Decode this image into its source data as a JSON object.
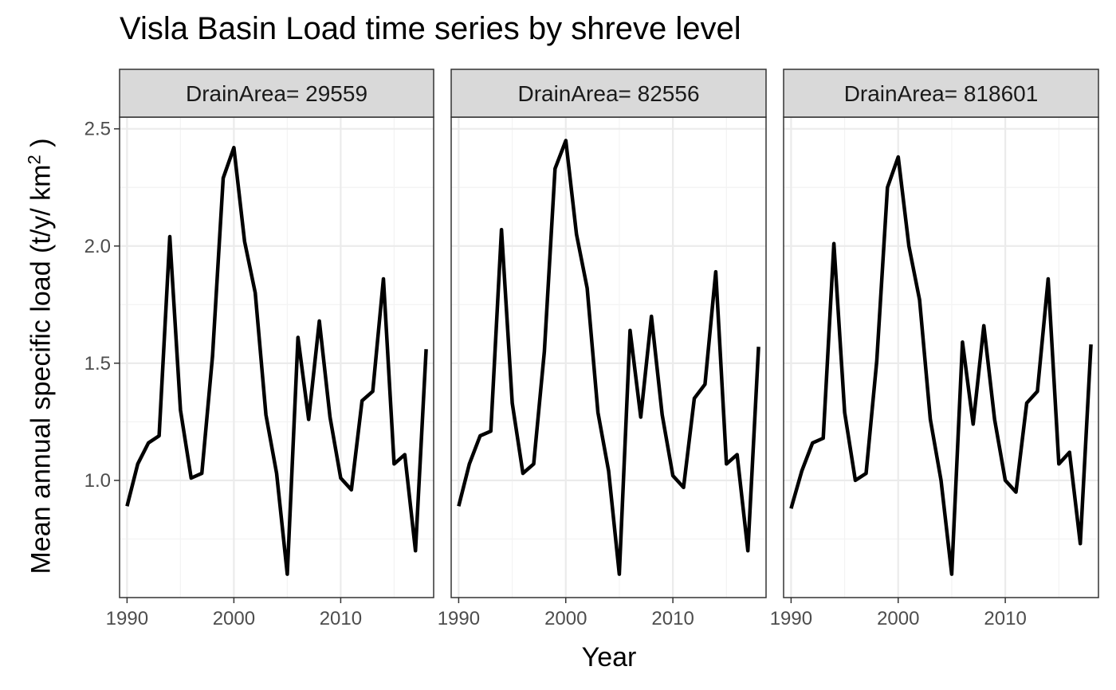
{
  "chart_data": {
    "type": "line",
    "title": "Visla Basin Load time series by shreve level",
    "xlabel": "Year",
    "ylabel": "Mean annual specific load (t/y/ km",
    "ylabel_sup": "2",
    "ylabel_close": ")",
    "xlim": [
      1989.3,
      2018.7
    ],
    "ylim": [
      0.5,
      2.55
    ],
    "x_ticks": [
      1990,
      2000,
      2010
    ],
    "y_ticks": [
      1.0,
      1.5,
      2.0,
      2.5
    ],
    "y_tick_labels": [
      "1.0",
      "1.5",
      "2.0",
      "2.5"
    ],
    "grid": true,
    "x": [
      1990,
      1991,
      1992,
      1993,
      1994,
      1995,
      1996,
      1997,
      1998,
      1999,
      2000,
      2001,
      2002,
      2003,
      2004,
      2005,
      2006,
      2007,
      2008,
      2009,
      2010,
      2011,
      2012,
      2013,
      2014,
      2015,
      2016,
      2017,
      2018
    ],
    "series": [
      {
        "panel": "DrainArea= 29559",
        "values": [
          0.89,
          1.07,
          1.16,
          1.19,
          2.04,
          1.3,
          1.01,
          1.03,
          1.53,
          2.29,
          2.42,
          2.02,
          1.8,
          1.28,
          1.03,
          0.6,
          1.61,
          1.26,
          1.68,
          1.27,
          1.01,
          0.96,
          1.34,
          1.38,
          1.86,
          1.07,
          1.11,
          0.7,
          1.56
        ]
      },
      {
        "panel": "DrainArea= 82556",
        "values": [
          0.89,
          1.07,
          1.19,
          1.21,
          2.07,
          1.33,
          1.03,
          1.07,
          1.55,
          2.33,
          2.45,
          2.05,
          1.82,
          1.29,
          1.04,
          0.6,
          1.64,
          1.27,
          1.7,
          1.28,
          1.02,
          0.97,
          1.35,
          1.41,
          1.89,
          1.07,
          1.11,
          0.7,
          1.57
        ]
      },
      {
        "panel": "DrainArea= 818601",
        "values": [
          0.88,
          1.04,
          1.16,
          1.18,
          2.01,
          1.29,
          1.0,
          1.03,
          1.51,
          2.25,
          2.38,
          2.0,
          1.77,
          1.26,
          1.0,
          0.6,
          1.59,
          1.24,
          1.66,
          1.26,
          1.0,
          0.95,
          1.33,
          1.38,
          1.86,
          1.07,
          1.12,
          0.73,
          1.58
        ]
      }
    ],
    "colors": {
      "line": "#000000",
      "strip_fill": "#d9d9d9",
      "panel_border": "#333333",
      "grid_major": "#ebebeb",
      "grid_minor": "#f3f3f3",
      "tick_text": "#4d4d4d"
    }
  }
}
